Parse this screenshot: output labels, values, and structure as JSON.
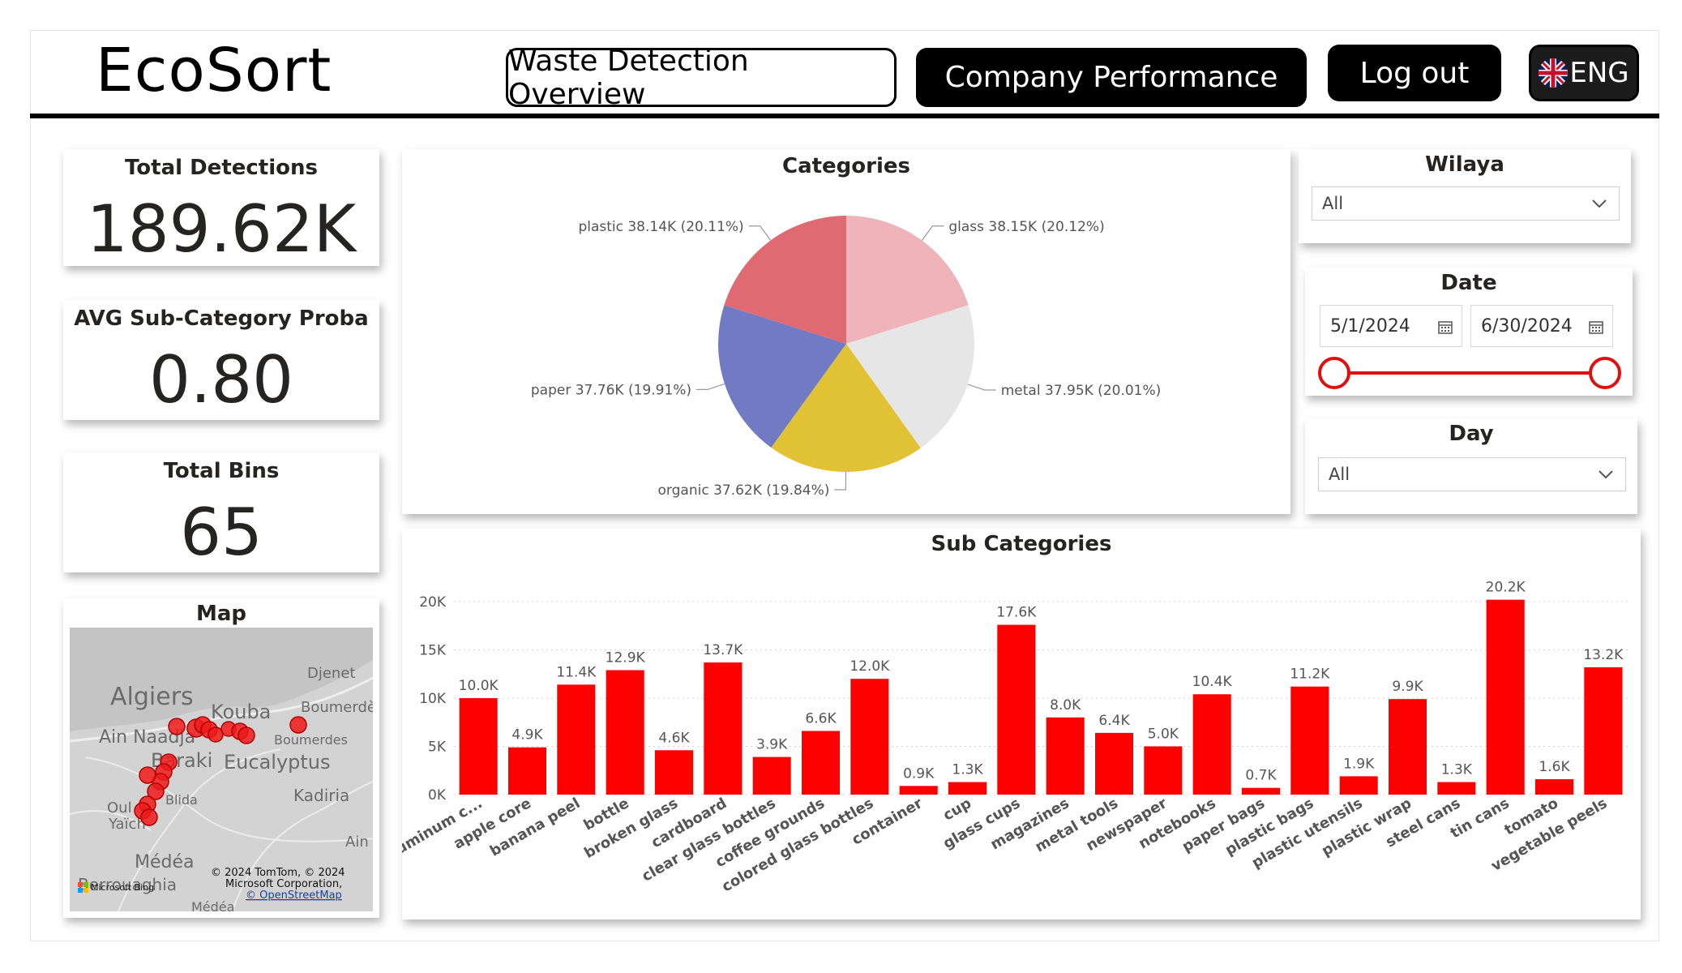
{
  "header": {
    "logo": "EcoSort",
    "nav": {
      "waste": "Waste Detection Overview",
      "company": "Company Performance",
      "logout": "Log out",
      "lang": "ENG"
    }
  },
  "kpis": [
    {
      "title": "Total Detections",
      "value": "189.62K"
    },
    {
      "title": "AVG Sub-Category Proba",
      "value": "0.80"
    },
    {
      "title": "Total Bins",
      "value": "65"
    }
  ],
  "map": {
    "title": "Map",
    "labels": [
      "Algiers",
      "Kouba",
      "Djenet",
      "Boumerdè",
      "Ain Naadja",
      "Boumerdes",
      "Baraki",
      "Eucalyptus",
      "Blida",
      "Kadiria",
      "Oul",
      "Yaïch",
      "Ain",
      "Médéa",
      "Berrouaghia",
      "Médéa"
    ],
    "attribution": [
      "© 2024 TomTom, © 2024",
      "Microsoft Corporation,",
      "© OpenStreetMap"
    ],
    "brand": "Microsoft Bing"
  },
  "filters": {
    "wilaya": {
      "title": "Wilaya",
      "value": "All"
    },
    "date": {
      "title": "Date",
      "start": "5/1/2024",
      "end": "6/30/2024",
      "range": [
        0,
        1
      ]
    },
    "day": {
      "title": "Day",
      "value": "All"
    }
  },
  "colors": {
    "plastic": "#df6a72",
    "glass": "#efb3ba",
    "metal": "#e6e6e6",
    "organic": "#e1c234",
    "paper": "#717bc3",
    "bar": "#ff0000",
    "slider": "#e01010"
  },
  "chart_data": [
    {
      "type": "pie",
      "title": "Categories",
      "slices": [
        {
          "name": "glass",
          "label": "glass 38.15K (20.12%)",
          "value": 38.15
        },
        {
          "name": "metal",
          "label": "metal 37.95K (20.01%)",
          "value": 37.95
        },
        {
          "name": "organic",
          "label": "organic 37.62K (19.84%)",
          "value": 37.62
        },
        {
          "name": "paper",
          "label": "paper 37.76K (19.91%)",
          "value": 37.76
        },
        {
          "name": "plastic",
          "label": "plastic 38.14K (20.11%)",
          "value": 38.14
        }
      ]
    },
    {
      "type": "bar",
      "title": "Sub Categories",
      "ylim": [
        0,
        20000
      ],
      "yticks": [
        0,
        5000,
        10000,
        15000,
        20000
      ],
      "ytick_labels": [
        "0K",
        "5K",
        "10K",
        "15K",
        "20K"
      ],
      "grid": true,
      "categories": [
        "aluminum c...",
        "apple core",
        "banana peel",
        "bottle",
        "broken glass",
        "cardboard",
        "clear glass bottles",
        "coffee grounds",
        "colored glass bottles",
        "container",
        "cup",
        "glass cups",
        "magazines",
        "metal tools",
        "newspaper",
        "notebooks",
        "paper bags",
        "plastic bags",
        "plastic utensils",
        "plastic wrap",
        "steel cans",
        "tin cans",
        "tomato",
        "vegetable peels"
      ],
      "values": [
        10000,
        4900,
        11400,
        12900,
        4600,
        13700,
        3900,
        6600,
        12000,
        900,
        1300,
        17600,
        8000,
        6400,
        5000,
        10400,
        700,
        11200,
        1900,
        9900,
        1300,
        20200,
        1600,
        13200
      ],
      "data_labels": [
        "10.0K",
        "4.9K",
        "11.4K",
        "12.9K",
        "4.6K",
        "13.7K",
        "3.9K",
        "6.6K",
        "12.0K",
        "0.9K",
        "1.3K",
        "17.6K",
        "8.0K",
        "6.4K",
        "5.0K",
        "10.4K",
        "0.7K",
        "11.2K",
        "1.9K",
        "9.9K",
        "1.3K",
        "20.2K",
        "1.6K",
        "13.2K"
      ]
    }
  ]
}
